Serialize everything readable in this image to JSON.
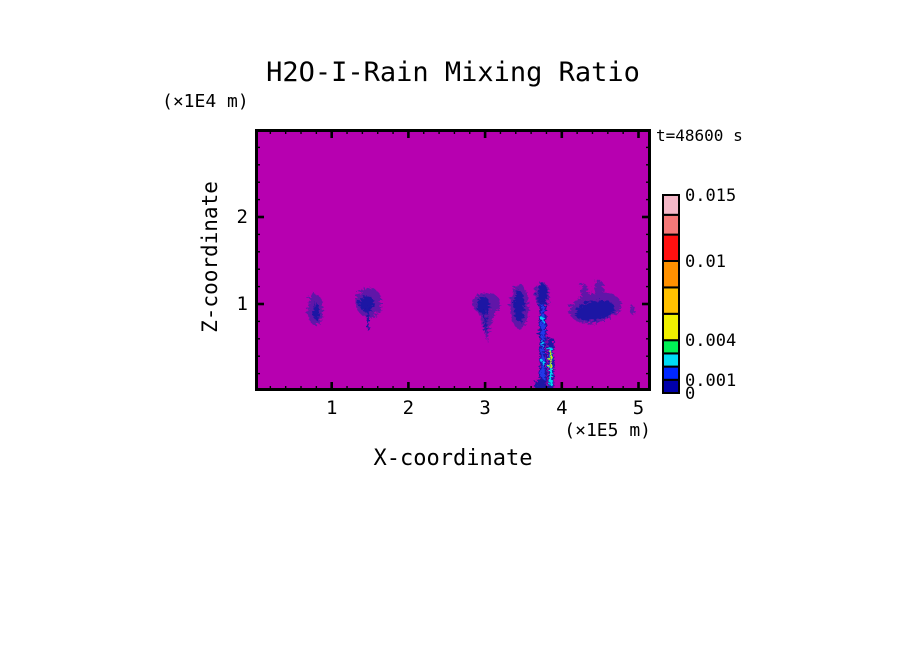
{
  "title": "H2O-I-Rain Mixing Ratio",
  "time_label": "t=48600 s",
  "axes": {
    "x": {
      "label": "X-coordinate",
      "units": "(×1E5 m)",
      "ticks": [
        {
          "value": 1,
          "label": "1"
        },
        {
          "value": 2,
          "label": "2"
        },
        {
          "value": 3,
          "label": "3"
        },
        {
          "value": 4,
          "label": "4"
        },
        {
          "value": 5,
          "label": "5"
        }
      ],
      "minor_step": 0.2,
      "range": [
        0,
        5.16
      ]
    },
    "z": {
      "label": "Z-coordinate",
      "units": "(×1E4 m)",
      "ticks": [
        {
          "value": 1,
          "label": "1"
        },
        {
          "value": 2,
          "label": "2"
        }
      ],
      "minor_step": 0.2,
      "range": [
        0,
        3.01
      ]
    }
  },
  "colorbar": {
    "levels": [
      0,
      0.001,
      0.002,
      0.003,
      0.004,
      0.006,
      0.008,
      0.01,
      0.012,
      0.0135,
      0.015
    ],
    "colors": [
      "#0000AA",
      "#0028FF",
      "#00DCF5",
      "#00F055",
      "#F0F000",
      "#FFC000",
      "#FF9000",
      "#FF1010",
      "#F57878",
      "#F5B8C8"
    ],
    "labels": [
      {
        "value": 0.015,
        "text": "0.015"
      },
      {
        "value": 0.01,
        "text": "0.01"
      },
      {
        "value": 0.004,
        "text": "0.004"
      },
      {
        "value": 0.001,
        "text": "0.001"
      },
      {
        "value": 0,
        "text": "0"
      }
    ]
  },
  "field_colors": {
    "background": "#B700B0",
    "halo": "#6014A8",
    "navy": "#1A12A4",
    "blue": "#2238E8",
    "cyan": "#00D4F0",
    "yellow": "#D8E600"
  },
  "chart_data": {
    "type": "heatmap",
    "title": "H2O-I-Rain Mixing Ratio",
    "xlabel": "X-coordinate (×1E5 m)",
    "ylabel": "Z-coordinate (×1E4 m)",
    "xlim": [
      0,
      5.16
    ],
    "ylim": [
      0,
      3.01
    ],
    "time_seconds": 48600,
    "background_value": 0,
    "contour_levels": [
      0,
      0.001,
      0.002,
      0.003,
      0.004,
      0.006,
      0.008,
      0.01,
      0.012,
      0.0135,
      0.015
    ],
    "legend_position": "right",
    "grid": false,
    "rain_cells": [
      {
        "x": 0.77,
        "z": 0.95,
        "x_extent": 0.2,
        "z_extent": 0.36,
        "peak": 0.002
      },
      {
        "x": 1.45,
        "z": 1.0,
        "x_extent": 0.34,
        "z_extent": 0.45,
        "peak": 0.002
      },
      {
        "x": 3.0,
        "z": 0.9,
        "x_extent": 0.36,
        "z_extent": 0.55,
        "peak": 0.002
      },
      {
        "x": 3.43,
        "z": 1.0,
        "x_extent": 0.24,
        "z_extent": 0.52,
        "peak": 0.002
      },
      {
        "x": 3.73,
        "z": 0.6,
        "x_extent": 0.19,
        "z_extent": 1.26,
        "peak": 0.003
      },
      {
        "x": 3.83,
        "z": 0.31,
        "x_extent": 0.07,
        "z_extent": 0.63,
        "peak": 0.005
      },
      {
        "x": 4.42,
        "z": 0.95,
        "x_extent": 0.68,
        "z_extent": 0.42,
        "peak": 0.002
      }
    ],
    "render_shapes": [
      {
        "kind": "ellipse",
        "color": "halo",
        "x": 0.77,
        "z": 0.95,
        "rx": 0.1,
        "rz": 0.18
      },
      {
        "kind": "ellipse",
        "color": "navy",
        "x": 0.78,
        "z": 0.93,
        "rx": 0.035,
        "rz": 0.1
      },
      {
        "kind": "ellipse",
        "color": "halo",
        "x": 1.47,
        "z": 1.03,
        "rx": 0.17,
        "rz": 0.17
      },
      {
        "kind": "ellipse",
        "color": "navy",
        "x": 1.44,
        "z": 1.02,
        "rx": 0.1,
        "rz": 0.095
      },
      {
        "kind": "vline",
        "color": "navy",
        "x": 1.455,
        "z1": 0.98,
        "z2": 0.72,
        "w": 2
      },
      {
        "kind": "ellipse",
        "color": "halo",
        "x": 3.0,
        "z": 1.02,
        "rx": 0.18,
        "rz": 0.13
      },
      {
        "kind": "polygon",
        "color": "halo",
        "points": [
          [
            2.88,
            1.0
          ],
          [
            3.12,
            1.0
          ],
          [
            3.01,
            0.58
          ]
        ]
      },
      {
        "kind": "ellipse",
        "color": "navy",
        "x": 2.96,
        "z": 1.0,
        "rx": 0.085,
        "rz": 0.1
      },
      {
        "kind": "vline",
        "color": "navy",
        "x": 2.99,
        "z1": 0.95,
        "z2": 0.7,
        "w": 3
      },
      {
        "kind": "ellipse",
        "color": "halo",
        "x": 3.43,
        "z": 0.99,
        "rx": 0.12,
        "rz": 0.26
      },
      {
        "kind": "ellipse",
        "color": "navy",
        "x": 3.425,
        "z": 0.99,
        "rx": 0.07,
        "rz": 0.18
      },
      {
        "kind": "ellipse",
        "color": "halo",
        "x": 3.73,
        "z": 1.12,
        "rx": 0.095,
        "rz": 0.15
      },
      {
        "kind": "ellipse",
        "color": "navy",
        "x": 3.73,
        "z": 1.12,
        "rx": 0.065,
        "rz": 0.13
      },
      {
        "kind": "vline",
        "color": "navy",
        "x": 3.735,
        "z1": 1.05,
        "z2": 0,
        "w": 7
      },
      {
        "kind": "vline",
        "color": "blue",
        "x": 3.735,
        "z1": 1.0,
        "z2": 0.03,
        "w": 3
      },
      {
        "kind": "dash",
        "color": "cyan",
        "x": 3.735,
        "z": 0.84,
        "w": 2,
        "h": 5
      },
      {
        "kind": "dash",
        "color": "cyan",
        "x": 3.735,
        "z": 0.56,
        "w": 2,
        "h": 5
      },
      {
        "kind": "dash",
        "color": "cyan",
        "x": 3.735,
        "z": 0.34,
        "w": 2,
        "h": 4
      },
      {
        "kind": "ellipse",
        "color": "navy",
        "x": 3.71,
        "z": 0.06,
        "rx": 0.075,
        "rz": 0.1
      },
      {
        "kind": "vline",
        "color": "navy",
        "x": 3.835,
        "z1": 0.62,
        "z2": 0,
        "w": 6
      },
      {
        "kind": "vline",
        "color": "cyan",
        "x": 3.835,
        "z1": 0.52,
        "z2": 0.08,
        "w": 3
      },
      {
        "kind": "vline",
        "color": "yellow",
        "x": 3.835,
        "z1": 0.47,
        "z2": 0.28,
        "w": 2
      },
      {
        "kind": "ellipse",
        "color": "halo",
        "x": 4.42,
        "z": 0.97,
        "rx": 0.34,
        "rz": 0.17,
        "rot": -12
      },
      {
        "kind": "ellipse",
        "color": "halo",
        "x": 4.47,
        "z": 1.2,
        "rx": 0.06,
        "rz": 0.09
      },
      {
        "kind": "ellipse",
        "color": "halo",
        "x": 4.28,
        "z": 1.16,
        "rx": 0.05,
        "rz": 0.08
      },
      {
        "kind": "ellipse",
        "color": "navy",
        "x": 4.41,
        "z": 0.94,
        "rx": 0.26,
        "rz": 0.11,
        "rot": -12
      },
      {
        "kind": "ellipse",
        "color": "halo",
        "x": 4.9,
        "z": 0.95,
        "rx": 0.035,
        "rz": 0.05
      }
    ]
  }
}
